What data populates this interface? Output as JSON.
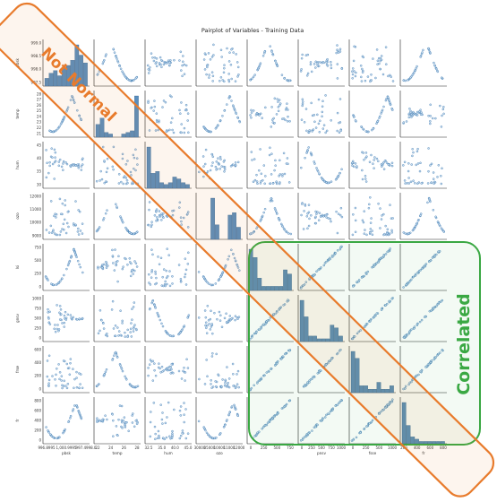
{
  "chart_data": {
    "type": "scatter",
    "title": "Pairplot of Variables - Training Data",
    "variables": [
      "pbsk",
      "temp",
      "hum",
      "ozo",
      "lsi",
      "gnsv",
      "frse",
      "fr"
    ],
    "x_axis_labels": [
      "pbsk",
      "temp",
      "hum",
      "ozo",
      "",
      "pnsv",
      "fsse",
      "fr"
    ],
    "y_axis_labels": [
      "pbsk",
      "temp",
      "hum",
      "ozo",
      "lsi",
      "gnsv",
      "frse",
      "fr"
    ],
    "x_tick_labels": [
      [
        "996.8995",
        "1,000.9995",
        "997.4998.0"
      ],
      [
        "22",
        "24",
        "26",
        "28"
      ],
      [
        "32.5",
        "35.0",
        "40.0",
        "45.0"
      ],
      [
        "30000",
        "35000",
        "10000",
        "11000",
        "12000"
      ],
      [
        "0",
        "250",
        "500",
        "750"
      ],
      [
        "0",
        "250",
        "500",
        "750",
        "1000"
      ],
      [
        "0",
        "250",
        "500",
        "1000"
      ],
      [
        "200",
        "400",
        "600",
        "800"
      ]
    ],
    "y_tick_labels": [
      [
        "999.0",
        "998.5",
        "998.0",
        "997.5"
      ],
      [
        "28",
        "27",
        "26",
        "25",
        "24",
        "23",
        "22",
        "21"
      ],
      [
        "45",
        "40",
        "35",
        "30"
      ],
      [
        "12000",
        "11000",
        "10000",
        "9000"
      ],
      [
        "750",
        "500",
        "250",
        "0"
      ],
      [
        "1000",
        "750",
        "500",
        "250",
        "0"
      ],
      [
        "600",
        "400",
        "200",
        "0"
      ],
      [
        "800",
        "600",
        "400",
        "200",
        "0"
      ]
    ],
    "diagonal_histograms": [
      [
        3,
        5,
        6,
        4,
        7,
        8,
        10,
        16,
        12,
        9
      ],
      [
        8,
        12,
        3,
        2,
        0,
        0,
        2,
        3,
        4,
        26
      ],
      [
        22,
        8,
        9,
        3,
        2,
        3,
        6,
        5,
        3,
        2
      ],
      [
        0,
        0,
        0,
        17,
        6,
        0,
        0,
        10,
        11,
        5
      ],
      [
        10,
        8,
        3,
        1,
        1,
        1,
        1,
        1,
        5,
        4
      ],
      [
        15,
        9,
        2,
        2,
        1,
        1,
        1,
        6,
        5,
        2
      ],
      [
        12,
        10,
        2,
        2,
        1,
        1,
        3,
        1,
        1,
        2
      ],
      [
        18,
        8,
        3,
        2,
        1,
        1,
        1,
        1,
        1,
        1
      ]
    ],
    "grid": false
  },
  "annotations": {
    "not_normal": {
      "label": "Not Normal",
      "color": "#e87b2c"
    },
    "correlated": {
      "label": "Correlated",
      "color": "#3aa843"
    }
  },
  "colors": {
    "points": "#3a78b0",
    "point_fill": "#c9dcef",
    "hist": "#5a8ebd",
    "frame": "#222222"
  }
}
